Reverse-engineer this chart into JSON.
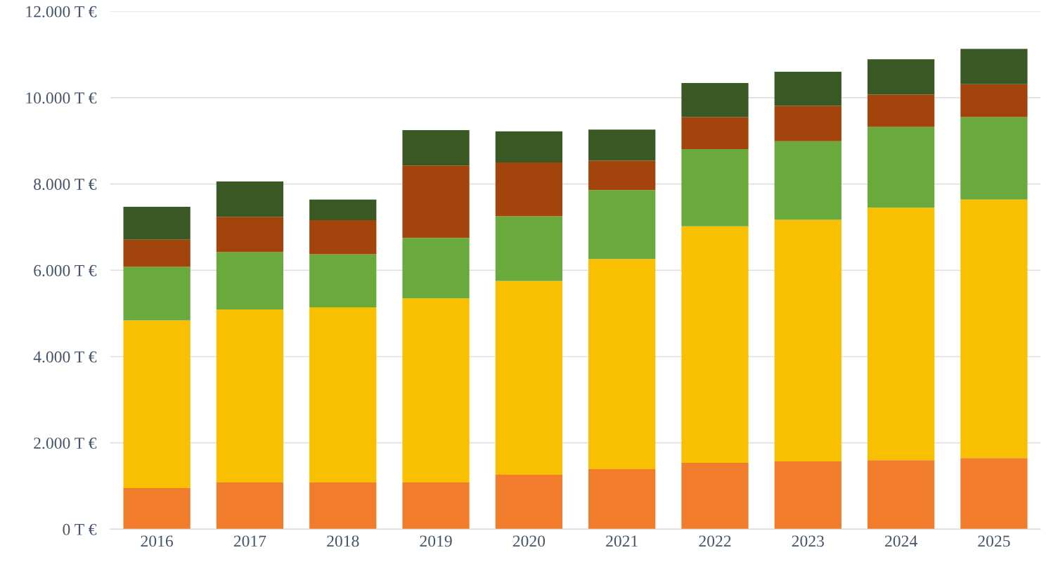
{
  "chart_data": {
    "type": "bar",
    "stacked": true,
    "categories": [
      "2016",
      "2017",
      "2018",
      "2019",
      "2020",
      "2021",
      "2022",
      "2023",
      "2024",
      "2025"
    ],
    "series": [
      {
        "color": "#f07c2c",
        "values": [
          950,
          1080,
          1080,
          1080,
          1260,
          1390,
          1540,
          1570,
          1600,
          1650
        ]
      },
      {
        "color": "#f8c000",
        "values": [
          3890,
          4010,
          4060,
          4270,
          4490,
          4870,
          5480,
          5600,
          5850,
          5990
        ]
      },
      {
        "color": "#6aaa3c",
        "values": [
          1240,
          1330,
          1230,
          1400,
          1500,
          1600,
          1790,
          1820,
          1870,
          1910
        ]
      },
      {
        "color": "#a2440c",
        "values": [
          630,
          820,
          790,
          1680,
          1250,
          680,
          740,
          820,
          750,
          760
        ]
      },
      {
        "color": "#3a5824",
        "values": [
          760,
          820,
          480,
          820,
          720,
          720,
          790,
          790,
          820,
          820
        ]
      }
    ],
    "ylim": [
      0,
      12000
    ],
    "yticks": [
      {
        "value": 0,
        "label": "0 T €"
      },
      {
        "value": 2000,
        "label": "2.000 T €"
      },
      {
        "value": 4000,
        "label": "4.000 T €"
      },
      {
        "value": 6000,
        "label": "6.000 T €"
      },
      {
        "value": 8000,
        "label": "8.000 T €"
      },
      {
        "value": 10000,
        "label": "10.000 T €"
      },
      {
        "value": 12000,
        "label": "12.000 T €"
      }
    ],
    "grid": "y"
  }
}
